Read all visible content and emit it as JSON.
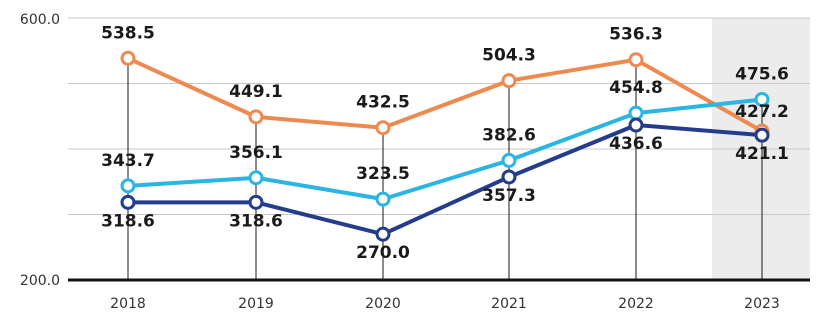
{
  "chart_data": {
    "type": "line",
    "categories": [
      "2018",
      "2019",
      "2020",
      "2021",
      "2022",
      "2023"
    ],
    "y_tick_labels": [
      "600.0",
      "200.0"
    ],
    "ylim": [
      200,
      600
    ],
    "grid": true,
    "highlight_category": "2023",
    "series": [
      {
        "key": "orange",
        "color": "#ee8a4f",
        "values": [
          538.5,
          449.1,
          432.5,
          504.3,
          536.3,
          427.2
        ],
        "labels": [
          "538.5",
          "449.1",
          "432.5",
          "504.3",
          "536.3",
          "427.2"
        ]
      },
      {
        "key": "light",
        "color": "#2bb5e4",
        "values": [
          343.7,
          356.1,
          323.5,
          382.6,
          454.8,
          475.6
        ],
        "labels": [
          "343.7",
          "356.1",
          "323.5",
          "382.6",
          "454.8",
          "475.6"
        ]
      },
      {
        "key": "dark",
        "color": "#243c8c",
        "values": [
          318.6,
          318.6,
          270.0,
          357.3,
          436.6,
          421.1
        ],
        "labels": [
          "318.6",
          "318.6",
          "270.0",
          "357.3",
          "436.6",
          "421.1"
        ]
      }
    ]
  }
}
